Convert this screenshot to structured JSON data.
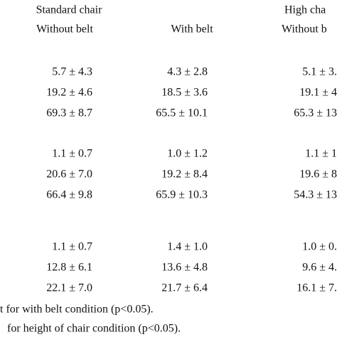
{
  "header": {
    "group_1": "Standard chair",
    "group_2": "High cha",
    "columns": [
      "Without belt",
      "With belt",
      "Without b"
    ]
  },
  "table": {
    "rows": [
      [
        "5.7 ± 4.3",
        "4.3 ± 2.8",
        "5.1 ± 3."
      ],
      [
        "19.2 ± 4.6",
        "18.5 ± 3.6",
        "19.1 ± 4"
      ],
      [
        "69.3 ± 8.7",
        "65.5 ± 10.1",
        "65.3 ± 13"
      ],
      [
        "1.1 ± 0.7",
        "1.0 ± 1.2",
        "1.1 ± 1"
      ],
      [
        "20.6 ± 7.0",
        "19.2 ± 8.4",
        "19.6 ± 8"
      ],
      [
        "66.4 ± 9.8",
        "65.9 ± 10.3",
        "54.3 ± 13"
      ],
      [
        "1.1 ± 0.7",
        "1.4 ± 1.0",
        "1.0 ± 0."
      ],
      [
        "12.8 ± 6.1",
        "13.6 ± 4.8",
        "9.6 ± 4."
      ],
      [
        "22.1 ± 7.0",
        "21.7 ± 6.4",
        "16.1 ± 7."
      ]
    ]
  },
  "footnotes": [
    "t for with belt condition (p<0.05).",
    "for height of chair condition (p<0.05)."
  ]
}
